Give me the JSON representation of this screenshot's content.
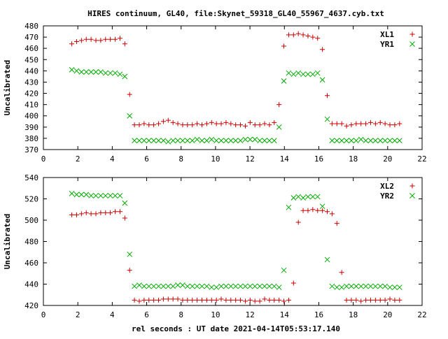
{
  "title": "HIRES continuum, GL40, file:Skynet_59318_GL40_55967_4637.cyb.txt",
  "xlabel": "rel seconds : UT date 2021-04-14T05:53:17.140",
  "colors": {
    "series1": "#cc0000",
    "series2": "#00aa00",
    "axes": "#000000"
  },
  "chart_data": [
    {
      "type": "scatter",
      "ylabel": "Uncalibrated",
      "xlim": [
        0,
        22
      ],
      "ylim": [
        370,
        480
      ],
      "xticks": [
        0,
        2,
        4,
        6,
        8,
        10,
        12,
        14,
        16,
        18,
        20,
        22
      ],
      "yticks": [
        370,
        380,
        390,
        400,
        410,
        420,
        430,
        440,
        450,
        460,
        470,
        480
      ],
      "legend_position": "top-right",
      "x": [
        1.65,
        1.93,
        2.21,
        2.49,
        2.77,
        3.05,
        3.33,
        3.61,
        3.89,
        4.17,
        4.45,
        4.73,
        5.01,
        5.29,
        5.57,
        5.85,
        6.13,
        6.41,
        6.69,
        6.97,
        7.25,
        7.53,
        7.81,
        8.09,
        8.37,
        8.65,
        8.93,
        9.21,
        9.49,
        9.77,
        10.05,
        10.33,
        10.61,
        10.89,
        11.17,
        11.45,
        11.73,
        12.01,
        12.29,
        12.57,
        12.85,
        13.13,
        13.41,
        13.69,
        13.97,
        14.25,
        14.53,
        14.81,
        15.09,
        15.37,
        15.65,
        15.93,
        16.21,
        16.49,
        16.77,
        17.05,
        17.33,
        17.61,
        17.89,
        18.17,
        18.45,
        18.73,
        19.01,
        19.29,
        19.57,
        19.85,
        20.13,
        20.41,
        20.69
      ],
      "series": [
        {
          "name": "XL1",
          "marker": "plus",
          "values": [
            464,
            466,
            467,
            468,
            468,
            467,
            467,
            468,
            468,
            468,
            469,
            464,
            419,
            392,
            392,
            393,
            392,
            392,
            393,
            395,
            396,
            394,
            393,
            392,
            392,
            392,
            393,
            392,
            393,
            394,
            393,
            393,
            394,
            393,
            392,
            392,
            391,
            394,
            392,
            392,
            393,
            392,
            394,
            410,
            462,
            472,
            472,
            473,
            472,
            471,
            470,
            469,
            459,
            418,
            393,
            393,
            393,
            391,
            392,
            393,
            393,
            393,
            394,
            393,
            394,
            393,
            392,
            392,
            393
          ]
        },
        {
          "name": "YR1",
          "marker": "cross",
          "values": [
            441,
            440,
            439,
            439,
            439,
            439,
            439,
            438,
            438,
            438,
            437,
            435,
            400,
            378,
            378,
            378,
            378,
            378,
            378,
            378,
            377,
            378,
            378,
            378,
            378,
            378,
            379,
            378,
            378,
            379,
            378,
            378,
            378,
            378,
            378,
            378,
            379,
            379,
            379,
            378,
            378,
            378,
            378,
            390,
            431,
            438,
            437,
            438,
            437,
            437,
            437,
            438,
            432,
            397,
            378,
            378,
            378,
            378,
            378,
            378,
            379,
            378,
            378,
            378,
            378,
            378,
            378,
            378,
            378
          ]
        }
      ]
    },
    {
      "type": "scatter",
      "ylabel": "Uncalibrated",
      "xlim": [
        0,
        22
      ],
      "ylim": [
        420,
        540
      ],
      "xticks": [
        0,
        2,
        4,
        6,
        8,
        10,
        12,
        14,
        16,
        18,
        20,
        22
      ],
      "yticks": [
        420,
        440,
        460,
        480,
        500,
        520,
        540
      ],
      "legend_position": "top-right",
      "x": [
        1.65,
        1.93,
        2.21,
        2.49,
        2.77,
        3.05,
        3.33,
        3.61,
        3.89,
        4.17,
        4.45,
        4.73,
        5.01,
        5.29,
        5.57,
        5.85,
        6.13,
        6.41,
        6.69,
        6.97,
        7.25,
        7.53,
        7.81,
        8.09,
        8.37,
        8.65,
        8.93,
        9.21,
        9.49,
        9.77,
        10.05,
        10.33,
        10.61,
        10.89,
        11.17,
        11.45,
        11.73,
        12.01,
        12.29,
        12.57,
        12.85,
        13.13,
        13.41,
        13.69,
        13.97,
        14.25,
        14.53,
        14.81,
        15.09,
        15.37,
        15.65,
        15.93,
        16.21,
        16.49,
        16.77,
        17.05,
        17.33,
        17.61,
        17.89,
        18.17,
        18.45,
        18.73,
        19.01,
        19.29,
        19.57,
        19.85,
        20.13,
        20.41,
        20.69
      ],
      "series": [
        {
          "name": "XL2",
          "marker": "plus",
          "values": [
            505,
            505,
            506,
            507,
            506,
            506,
            507,
            507,
            507,
            508,
            508,
            502,
            453,
            425,
            424,
            425,
            425,
            425,
            425,
            426,
            426,
            426,
            426,
            425,
            425,
            425,
            425,
            425,
            425,
            425,
            425,
            426,
            425,
            425,
            425,
            425,
            424,
            425,
            424,
            424,
            426,
            425,
            425,
            425,
            424,
            425,
            441,
            498,
            509,
            509,
            510,
            509,
            509,
            508,
            506,
            497,
            451,
            425,
            425,
            425,
            424,
            425,
            425,
            425,
            425,
            425,
            426,
            425,
            425
          ]
        },
        {
          "name": "YR2",
          "marker": "cross",
          "values": [
            525,
            524,
            524,
            524,
            523,
            523,
            523,
            523,
            523,
            523,
            523,
            516,
            468,
            438,
            439,
            438,
            438,
            438,
            438,
            438,
            438,
            438,
            439,
            439,
            438,
            438,
            438,
            438,
            438,
            437,
            437,
            438,
            438,
            438,
            438,
            438,
            438,
            438,
            438,
            438,
            438,
            438,
            438,
            437,
            453,
            512,
            521,
            522,
            521,
            522,
            522,
            522,
            513,
            463,
            438,
            437,
            437,
            438,
            438,
            438,
            438,
            438,
            438,
            438,
            438,
            438,
            437,
            437,
            437
          ]
        }
      ]
    }
  ]
}
